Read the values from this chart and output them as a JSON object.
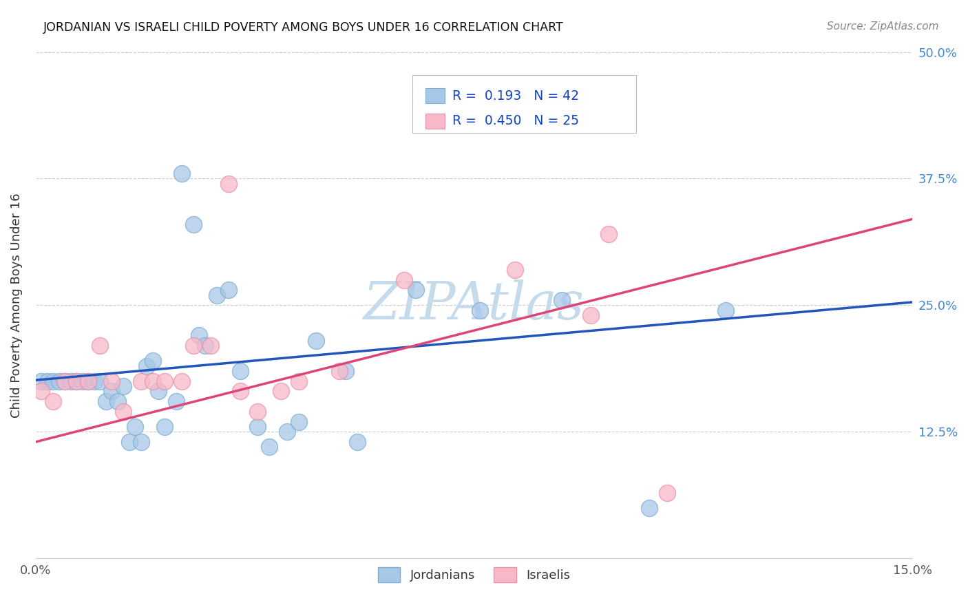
{
  "title": "JORDANIAN VS ISRAELI CHILD POVERTY AMONG BOYS UNDER 16 CORRELATION CHART",
  "source": "Source: ZipAtlas.com",
  "ylabel": "Child Poverty Among Boys Under 16",
  "xlim": [
    0,
    0.15
  ],
  "ylim": [
    0,
    0.5
  ],
  "ytick_labels_right": [
    "12.5%",
    "25.0%",
    "37.5%",
    "50.0%"
  ],
  "jordanians_color": "#a8c8e8",
  "jordanians_edge_color": "#7aadce",
  "israelis_color": "#f8b8c8",
  "israelis_edge_color": "#e890a8",
  "jordanians_line_color": "#2255bb",
  "israelis_line_color": "#dd4477",
  "watermark_color": "#d8e8f0",
  "jordanians_x": [
    0.001,
    0.002,
    0.003,
    0.004,
    0.005,
    0.006,
    0.007,
    0.008,
    0.009,
    0.01,
    0.011,
    0.012,
    0.013,
    0.014,
    0.015,
    0.016,
    0.017,
    0.018,
    0.019,
    0.02,
    0.021,
    0.022,
    0.024,
    0.025,
    0.027,
    0.028,
    0.029,
    0.031,
    0.033,
    0.035,
    0.038,
    0.04,
    0.043,
    0.045,
    0.048,
    0.053,
    0.055,
    0.065,
    0.076,
    0.09,
    0.105,
    0.118
  ],
  "jordanians_y": [
    0.175,
    0.175,
    0.175,
    0.175,
    0.175,
    0.175,
    0.175,
    0.175,
    0.175,
    0.175,
    0.175,
    0.155,
    0.165,
    0.155,
    0.17,
    0.115,
    0.13,
    0.115,
    0.19,
    0.195,
    0.165,
    0.13,
    0.155,
    0.38,
    0.33,
    0.22,
    0.21,
    0.26,
    0.265,
    0.185,
    0.13,
    0.11,
    0.125,
    0.135,
    0.215,
    0.185,
    0.115,
    0.265,
    0.245,
    0.255,
    0.05,
    0.245
  ],
  "israelis_x": [
    0.001,
    0.003,
    0.005,
    0.007,
    0.009,
    0.011,
    0.013,
    0.015,
    0.018,
    0.02,
    0.022,
    0.025,
    0.027,
    0.03,
    0.033,
    0.035,
    0.038,
    0.042,
    0.045,
    0.052,
    0.063,
    0.082,
    0.095,
    0.098,
    0.108
  ],
  "israelis_y": [
    0.165,
    0.155,
    0.175,
    0.175,
    0.175,
    0.21,
    0.175,
    0.145,
    0.175,
    0.175,
    0.175,
    0.175,
    0.21,
    0.21,
    0.37,
    0.165,
    0.145,
    0.165,
    0.175,
    0.185,
    0.275,
    0.285,
    0.24,
    0.32,
    0.065
  ],
  "bubble_size": 300,
  "jord_line_x0": 0.0,
  "jord_line_y0": 0.176,
  "jord_line_x1": 0.15,
  "jord_line_y1": 0.253,
  "isr_line_x0": 0.0,
  "isr_line_y0": 0.115,
  "isr_line_x1": 0.15,
  "isr_line_y1": 0.335,
  "dash_line_x0": 0.073,
  "dash_line_x1": 0.15,
  "dash_line_color": "#aaaaaa"
}
